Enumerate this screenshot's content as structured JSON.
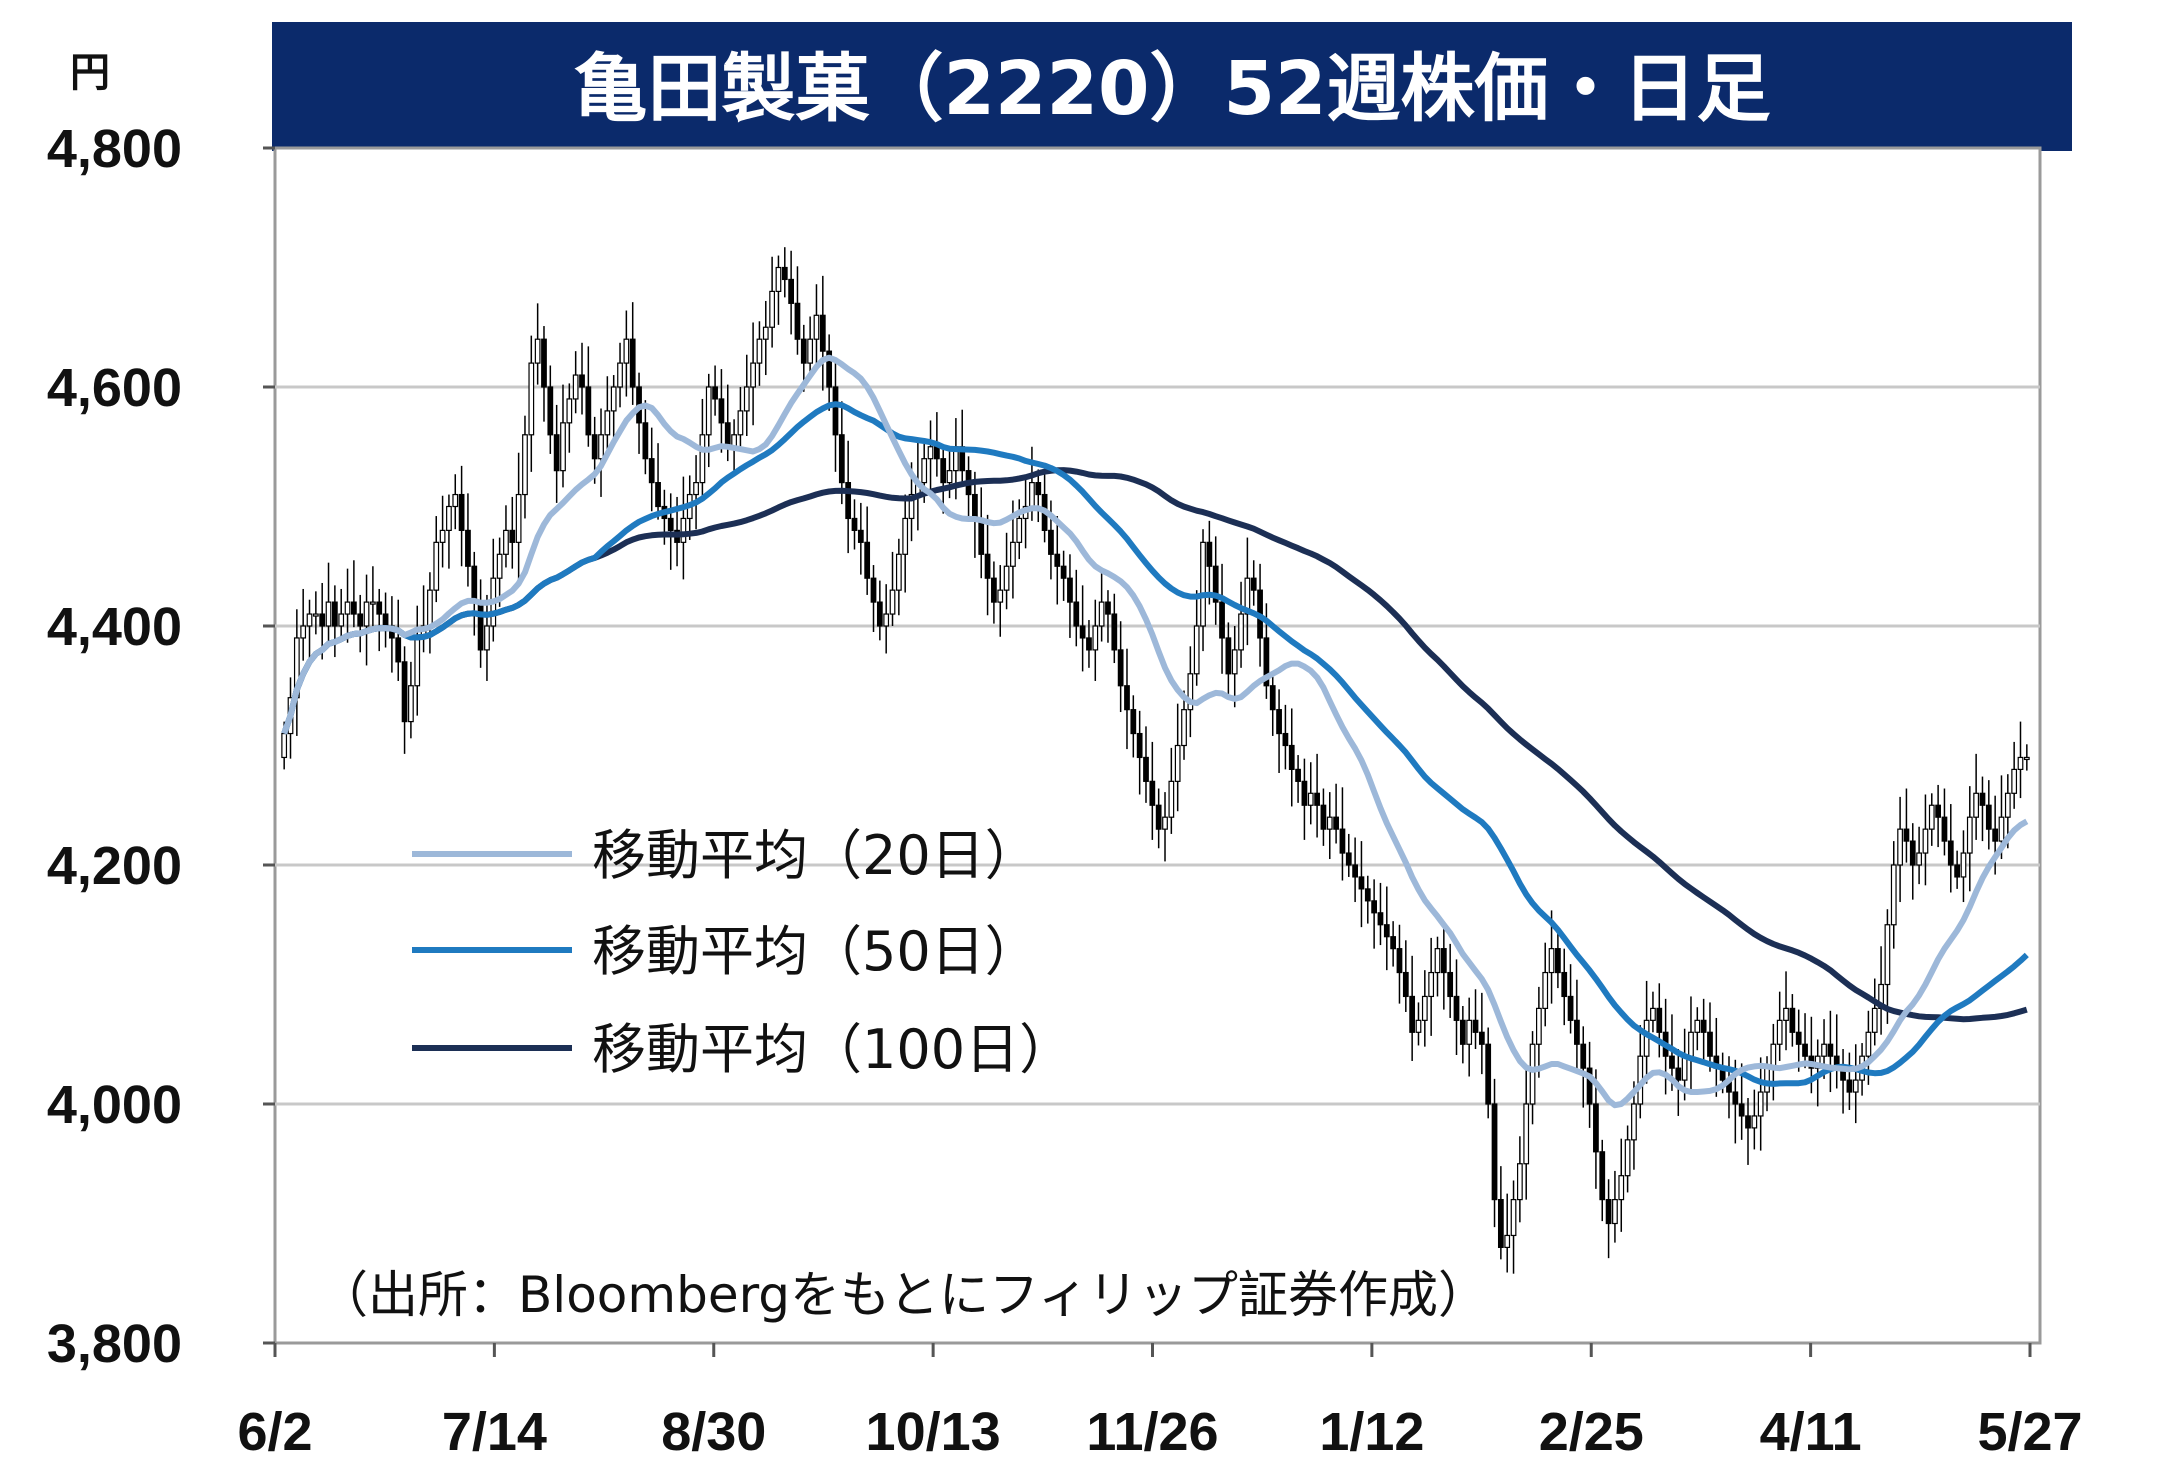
{
  "title": "亀田製菓（2220）52週株価・日足",
  "unit": "円",
  "source": "（出所：Bloombergをもとにフィリップ証券作成）",
  "colors": {
    "title_bg": "#0b2a6b",
    "ma20": "#9db8d9",
    "ma50": "#1f7ac0",
    "ma100": "#1c2f55",
    "candle": "#000000",
    "grid": "#c8c8c8"
  },
  "chart_data": {
    "type": "candlestick",
    "ylim": [
      3800,
      4800
    ],
    "yticks": [
      3800,
      4000,
      4200,
      4400,
      4600,
      4800
    ],
    "ytick_labels": [
      "3,800",
      "4,000",
      "4,200",
      "4,400",
      "4,600",
      "4,800"
    ],
    "xticks": [
      "6/2",
      "7/14",
      "8/30",
      "10/13",
      "11/26",
      "1/12",
      "2/25",
      "4/11",
      "5/27"
    ],
    "legend": [
      {
        "key": "ma20",
        "label": "移動平均（20日）"
      },
      {
        "key": "ma50",
        "label": "移動平均（50日）"
      },
      {
        "key": "ma100",
        "label": "移動平均（100日）"
      }
    ],
    "close": [
      4310,
      4340,
      4390,
      4400,
      4410,
      4410,
      4400,
      4420,
      4400,
      4410,
      4420,
      4410,
      4400,
      4420,
      4420,
      4410,
      4400,
      4390,
      4370,
      4320,
      4350,
      4390,
      4400,
      4430,
      4470,
      4480,
      4500,
      4510,
      4480,
      4450,
      4420,
      4380,
      4400,
      4440,
      4460,
      4480,
      4470,
      4510,
      4560,
      4620,
      4640,
      4600,
      4560,
      4530,
      4570,
      4590,
      4610,
      4600,
      4560,
      4540,
      4560,
      4580,
      4600,
      4620,
      4640,
      4600,
      4570,
      4540,
      4520,
      4500,
      4490,
      4480,
      4470,
      4490,
      4510,
      4520,
      4560,
      4600,
      4590,
      4570,
      4550,
      4560,
      4580,
      4600,
      4620,
      4640,
      4650,
      4680,
      4700,
      4690,
      4670,
      4640,
      4620,
      4640,
      4660,
      4630,
      4600,
      4560,
      4520,
      4490,
      4480,
      4470,
      4440,
      4420,
      4400,
      4410,
      4430,
      4460,
      4490,
      4510,
      4520,
      4540,
      4550,
      4540,
      4520,
      4530,
      4550,
      4530,
      4510,
      4490,
      4460,
      4440,
      4420,
      4430,
      4450,
      4470,
      4490,
      4500,
      4520,
      4510,
      4480,
      4460,
      4450,
      4440,
      4420,
      4400,
      4390,
      4380,
      4400,
      4420,
      4410,
      4380,
      4350,
      4330,
      4310,
      4290,
      4270,
      4250,
      4230,
      4240,
      4270,
      4300,
      4330,
      4360,
      4400,
      4470,
      4450,
      4420,
      4390,
      4360,
      4380,
      4410,
      4440,
      4430,
      4390,
      4350,
      4330,
      4310,
      4300,
      4280,
      4270,
      4250,
      4260,
      4250,
      4230,
      4240,
      4230,
      4210,
      4200,
      4190,
      4180,
      4170,
      4160,
      4150,
      4140,
      4130,
      4110,
      4090,
      4060,
      4070,
      4090,
      4110,
      4130,
      4110,
      4090,
      4070,
      4050,
      4070,
      4060,
      4050,
      4000,
      3920,
      3880,
      3890,
      3920,
      3950,
      4000,
      4050,
      4080,
      4110,
      4130,
      4110,
      4090,
      4070,
      4050,
      4030,
      4000,
      3960,
      3920,
      3900,
      3920,
      3940,
      3970,
      4000,
      4040,
      4070,
      4080,
      4060,
      4040,
      4030,
      4020,
      4040,
      4060,
      4070,
      4060,
      4040,
      4030,
      4020,
      4010,
      4000,
      3990,
      3980,
      3990,
      4010,
      4030,
      4050,
      4070,
      4080,
      4060,
      4050,
      4040,
      4030,
      4040,
      4050,
      4040,
      4030,
      4020,
      4010,
      4020,
      4040,
      4060,
      4080,
      4100,
      4150,
      4200,
      4230,
      4220,
      4200,
      4210,
      4230,
      4250,
      4240,
      4220,
      4200,
      4190,
      4210,
      4240,
      4260,
      4250,
      4230,
      4220,
      4240,
      4260,
      4280,
      4290,
      4290
    ]
  }
}
